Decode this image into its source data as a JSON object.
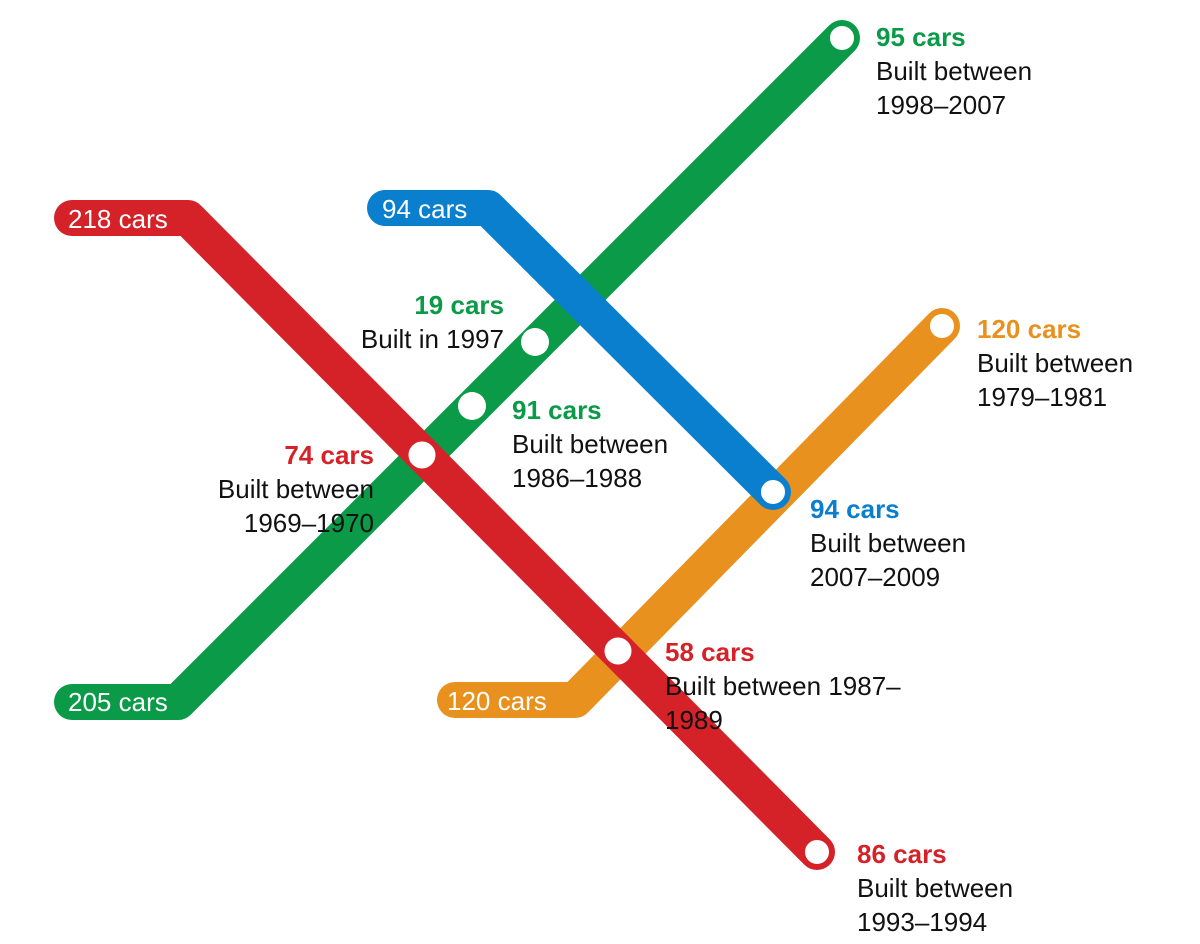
{
  "colors": {
    "green": "#0a9a48",
    "blue": "#0a7fce",
    "red": "#d52128",
    "orange": "#e8911e",
    "station_fill": "#ffffff"
  },
  "lines": {
    "green": {
      "start_label": "205 cars"
    },
    "blue": {
      "start_label": "94 cars"
    },
    "red": {
      "start_label": "218 cars"
    },
    "orange": {
      "start_label": "120 cars"
    }
  },
  "stations": {
    "green_end": {
      "count": "95 cars",
      "line1": "Built between",
      "line2": "1998–2007"
    },
    "green_19": {
      "count": "19 cars",
      "line1": "Built in 1997"
    },
    "green_91": {
      "count": "91 cars",
      "line1": "Built between",
      "line2": "1986–1988"
    },
    "red_74": {
      "count": "74 cars",
      "line1": "Built between",
      "line2": "1969–1970"
    },
    "blue_end": {
      "count": "94 cars",
      "line1": "Built between",
      "line2": "2007–2009"
    },
    "orange_end": {
      "count": "120 cars",
      "line1": "Built between",
      "line2": "1979–1981"
    },
    "red_58": {
      "count": "58 cars",
      "line1": "Built between 1987–",
      "line2": "1989"
    },
    "red_end": {
      "count": "86 cars",
      "line1": "Built between",
      "line2": "1993–1994"
    }
  }
}
